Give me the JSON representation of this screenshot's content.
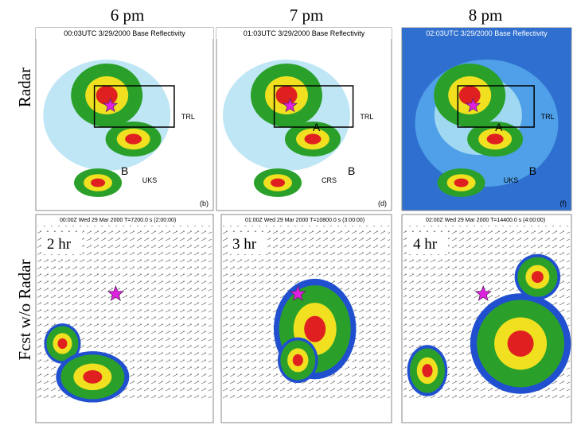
{
  "columns": [
    "6 pm",
    "7 pm",
    "8 pm"
  ],
  "rows": [
    "Radar",
    "Fcst w/o Radar"
  ],
  "radar_panels": [
    {
      "caption": "00:03UTC 3/29/2000 Base Reflectivity",
      "letter": "(b)",
      "cities": [
        "TRL",
        "UKS"
      ],
      "marks": [
        "B"
      ]
    },
    {
      "caption": "01:03UTC 3/29/2000 Base Reflectivity",
      "letter": "(d)",
      "cities": [
        "TRL",
        "CRS"
      ],
      "marks": [
        "A",
        "B"
      ]
    },
    {
      "caption": "02:03UTC 3/29/2000 Base Reflectivity",
      "letter": "(f)",
      "cities": [
        "TRL",
        "UKS"
      ],
      "marks": [
        "A",
        "B"
      ]
    }
  ],
  "forecast_panels": [
    {
      "lead": "2 hr",
      "header": "00:00Z Wed 29 Mar 2000  T=7200.0 s (2:00:00)"
    },
    {
      "lead": "3 hr",
      "header": "01:00Z Wed 29 Mar 2000  T=10800.0 s (3:00:00)"
    },
    {
      "lead": "4 hr",
      "header": "02:00Z Wed 29 Mar 2000  T=14400.0 s (4:00:00)"
    }
  ]
}
